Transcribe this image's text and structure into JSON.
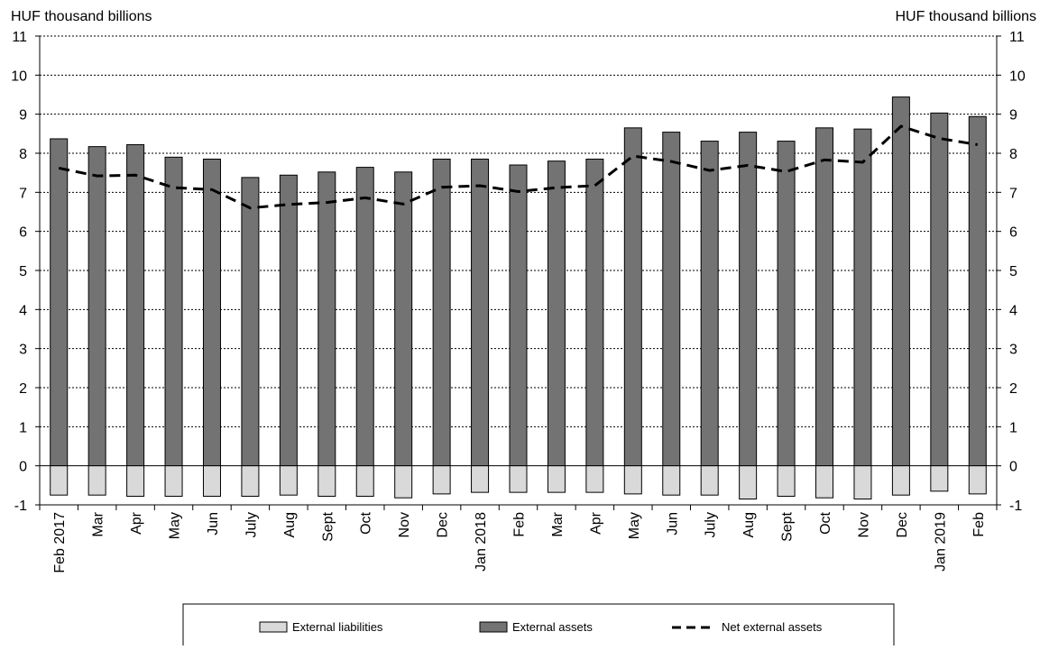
{
  "chart_data": {
    "type": "bar",
    "left_axis_unit": "HUF thousand billions",
    "right_axis_unit": "HUF thousand billions",
    "categories": [
      "Feb 2017",
      "Mar",
      "Apr",
      "May",
      "Jun",
      "July",
      "Aug",
      "Sept",
      "Oct",
      "Nov",
      "Dec",
      "Jan 2018",
      "Feb",
      "Mar",
      "Apr",
      "May",
      "Jun",
      "July",
      "Aug",
      "Sept",
      "Oct",
      "Nov",
      "Dec",
      "Jan 2019",
      "Feb"
    ],
    "ylim": [
      -1,
      11
    ],
    "yticks": [
      "-1",
      "0",
      "1",
      "2",
      "3",
      "4",
      "5",
      "6",
      "7",
      "8",
      "9",
      "10",
      "11"
    ],
    "grid": true,
    "series": [
      {
        "name": "External liabilities",
        "kind": "bar",
        "color": "#d9d9d9",
        "values": [
          -0.75,
          -0.75,
          -0.78,
          -0.78,
          -0.78,
          -0.78,
          -0.75,
          -0.78,
          -0.78,
          -0.82,
          -0.72,
          -0.68,
          -0.68,
          -0.68,
          -0.68,
          -0.72,
          -0.75,
          -0.75,
          -0.85,
          -0.78,
          -0.82,
          -0.85,
          -0.75,
          -0.65,
          -0.72
        ]
      },
      {
        "name": "External assets",
        "kind": "bar",
        "color": "#737373",
        "values": [
          8.37,
          8.17,
          8.22,
          7.9,
          7.85,
          7.38,
          7.44,
          7.52,
          7.64,
          7.52,
          7.85,
          7.85,
          7.7,
          7.8,
          7.85,
          8.65,
          8.54,
          8.31,
          8.54,
          8.31,
          8.65,
          8.62,
          9.44,
          9.03,
          8.94
        ]
      },
      {
        "name": "Net external assets",
        "kind": "line",
        "color": "#000000",
        "values": [
          7.62,
          7.42,
          7.44,
          7.12,
          7.07,
          6.6,
          6.69,
          6.74,
          6.86,
          6.7,
          7.13,
          7.17,
          7.02,
          7.12,
          7.17,
          7.93,
          7.79,
          7.56,
          7.69,
          7.53,
          7.83,
          7.77,
          8.69,
          8.38,
          8.22
        ]
      }
    ],
    "legend_position": "bottom"
  }
}
